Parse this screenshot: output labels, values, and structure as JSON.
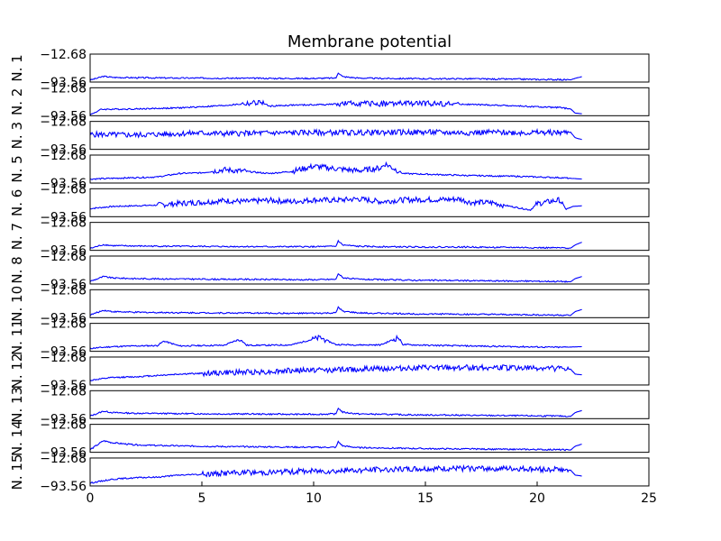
{
  "chart_data": {
    "type": "line",
    "title": "Membrane potential",
    "xlabel": "",
    "ylabel": "",
    "xlim": [
      0,
      25
    ],
    "ylim": [
      -93.56,
      -12.68
    ],
    "x_ticks": [
      0,
      5,
      10,
      15,
      20,
      25
    ],
    "y_tick_labels": [
      "−12.68",
      "−93.56"
    ],
    "line_color": "#0000ff",
    "grid": false,
    "legend": "none",
    "series": [
      {
        "name": "N. 1",
        "x": [
          0,
          0.6,
          1,
          2,
          3,
          4,
          5,
          6,
          7,
          8,
          9,
          10,
          11,
          11.1,
          11.3,
          12,
          13,
          14,
          15,
          16,
          17,
          18,
          19,
          20,
          21,
          21.5,
          21.7,
          22
        ],
        "y": [
          -88,
          -77,
          -80,
          -81,
          -81.5,
          -82,
          -82,
          -82.5,
          -82.5,
          -83,
          -83,
          -83,
          -82,
          -66,
          -78,
          -82,
          -83,
          -83.5,
          -84,
          -84,
          -84,
          -85,
          -85,
          -86,
          -86.5,
          -87,
          -83,
          -78
        ]
      },
      {
        "name": "N. 2",
        "x": [
          0,
          0.5,
          2,
          4,
          6,
          7.7,
          8,
          9,
          10,
          11,
          12,
          13,
          14,
          15,
          16,
          17,
          18,
          19,
          20,
          21,
          21.5,
          21.7,
          22
        ],
        "y": [
          -91,
          -75,
          -74,
          -71,
          -64,
          -55,
          -66,
          -63,
          -62,
          -60,
          -58,
          -59,
          -58,
          -58,
          -59,
          -61,
          -63,
          -65,
          -68,
          -70,
          -74,
          -86,
          -88
        ]
      },
      {
        "name": "N. 3",
        "x": [
          0,
          1,
          2,
          3,
          4,
          5,
          6,
          8,
          10,
          12,
          14,
          15,
          16,
          17,
          18,
          19,
          20,
          21,
          21.5,
          21.7,
          22
        ],
        "y": [
          -50,
          -51,
          -52,
          -50,
          -48,
          -46,
          -48,
          -46,
          -45,
          -45,
          -44,
          -44,
          -45,
          -45,
          -44,
          -45,
          -45,
          -45,
          -44,
          -60,
          -65
        ]
      },
      {
        "name": "N. 5",
        "x": [
          0,
          1,
          2,
          3,
          4,
          5,
          6,
          7,
          8,
          9,
          10,
          11,
          12,
          13,
          13.2,
          14,
          15,
          16,
          17,
          18,
          19,
          20,
          21,
          21.5,
          22
        ],
        "y": [
          -82,
          -80,
          -78,
          -76,
          -66,
          -64,
          -55,
          -60,
          -66,
          -60,
          -45,
          -52,
          -58,
          -50,
          -38,
          -66,
          -68,
          -70,
          -72,
          -73,
          -74,
          -76,
          -78,
          -80,
          -82
        ]
      },
      {
        "name": "N. 6",
        "x": [
          0,
          1,
          2,
          3,
          4,
          5,
          6,
          7,
          8,
          9,
          10,
          11,
          12,
          13,
          14,
          15,
          16,
          16.5,
          17,
          18,
          18.5,
          19,
          19.7,
          20,
          21,
          21.3,
          21.6,
          22
        ],
        "y": [
          -70,
          -64,
          -62,
          -60,
          -55,
          -52,
          -47,
          -50,
          -46,
          -50,
          -45,
          -46,
          -42,
          -50,
          -45,
          -44,
          -44,
          -42,
          -52,
          -53,
          -60,
          -66,
          -74,
          -56,
          -45,
          -72,
          -64,
          -62
        ]
      },
      {
        "name": "N. 7",
        "x": [
          0,
          0.6,
          1,
          2,
          3,
          4,
          5,
          6,
          7,
          8,
          9,
          10,
          11,
          11.1,
          11.3,
          12,
          13,
          14,
          15,
          16,
          17,
          18,
          19,
          20,
          21,
          21.5,
          21.7,
          22
        ],
        "y": [
          -88,
          -77,
          -80,
          -81,
          -81.5,
          -82,
          -82,
          -82.5,
          -82.5,
          -83,
          -83,
          -83,
          -82,
          -66,
          -78,
          -82,
          -83,
          -83.5,
          -84,
          -84,
          -84,
          -85,
          -85,
          -86,
          -86.5,
          -87,
          -78,
          -70
        ]
      },
      {
        "name": "N. 8",
        "x": [
          0,
          0.6,
          1,
          2,
          3,
          4,
          5,
          6,
          7,
          8,
          9,
          10,
          11,
          11.1,
          11.3,
          12,
          13,
          14,
          15,
          16,
          17,
          18,
          19,
          20,
          21,
          21.5,
          21.7,
          22
        ],
        "y": [
          -86,
          -72,
          -76,
          -78,
          -78.5,
          -79,
          -79.5,
          -80,
          -80,
          -80.5,
          -81,
          -81,
          -80,
          -63,
          -75,
          -80,
          -81,
          -82,
          -83,
          -83,
          -84,
          -84.5,
          -85,
          -85.5,
          -86,
          -87,
          -78,
          -72
        ]
      },
      {
        "name": "N. 10",
        "x": [
          0,
          0.6,
          1,
          2,
          3,
          4,
          5,
          6,
          7,
          8,
          9,
          10,
          11,
          11.1,
          11.3,
          12,
          13,
          14,
          15,
          16,
          17,
          18,
          19,
          20,
          21,
          21.5,
          21.7,
          22
        ],
        "y": [
          -86,
          -72,
          -76,
          -78,
          -78.5,
          -79,
          -79.5,
          -80,
          -80,
          -80.5,
          -81,
          -81,
          -80,
          -63,
          -75,
          -80,
          -81,
          -82,
          -83,
          -83,
          -84,
          -84.5,
          -85,
          -85.5,
          -86,
          -87,
          -76,
          -70
        ]
      },
      {
        "name": "N. 11",
        "x": [
          0,
          1,
          2,
          3,
          3.3,
          4,
          5,
          6,
          6.7,
          7,
          8,
          9,
          10,
          10.3,
          11,
          12,
          13,
          13.8,
          14,
          15,
          16,
          17,
          18,
          19,
          20,
          21,
          21.5,
          22
        ],
        "y": [
          -85,
          -80,
          -78,
          -77,
          -64,
          -78,
          -77,
          -76,
          -58,
          -76,
          -76,
          -75,
          -58,
          -54,
          -74,
          -75,
          -75,
          -53,
          -74,
          -76,
          -77,
          -78,
          -79,
          -80,
          -81,
          -82,
          -81,
          -80
        ]
      },
      {
        "name": "N. 12",
        "x": [
          0,
          1,
          2,
          3,
          4,
          5,
          6,
          7,
          8,
          9,
          10,
          11,
          12,
          13,
          14,
          15,
          16,
          17,
          18,
          19,
          20,
          21,
          21.5,
          21.7,
          22
        ],
        "y": [
          -80,
          -72,
          -70,
          -66,
          -62,
          -60,
          -58,
          -56,
          -55,
          -52,
          -50,
          -50,
          -48,
          -46,
          -45,
          -44,
          -44,
          -43,
          -43,
          -44,
          -45,
          -46,
          -48,
          -62,
          -64
        ]
      },
      {
        "name": "N. 13",
        "x": [
          0,
          0.6,
          1,
          2,
          3,
          4,
          5,
          6,
          7,
          8,
          9,
          10,
          11,
          11.1,
          11.3,
          12,
          13,
          14,
          15,
          16,
          17,
          18,
          19,
          20,
          21,
          21.5,
          21.7,
          22
        ],
        "y": [
          -86,
          -72,
          -76,
          -78,
          -78.5,
          -79,
          -79.5,
          -80,
          -80,
          -80.5,
          -81,
          -81,
          -80,
          -63,
          -75,
          -80,
          -81,
          -82,
          -83,
          -83,
          -84,
          -84.5,
          -85,
          -85.5,
          -86,
          -87,
          -76,
          -70
        ]
      },
      {
        "name": "N. 14",
        "x": [
          0,
          0.6,
          1,
          2,
          3,
          4,
          5,
          6,
          7,
          8,
          9,
          10,
          11,
          11.1,
          11.3,
          12,
          13,
          14,
          15,
          16,
          17,
          18,
          19,
          20,
          21,
          21.5,
          21.7,
          22
        ],
        "y": [
          -86,
          -60,
          -66,
          -72,
          -74,
          -75,
          -76,
          -77,
          -77.5,
          -78,
          -78.5,
          -79,
          -79,
          -63,
          -75,
          -80,
          -81,
          -82,
          -83,
          -83.5,
          -84,
          -84.5,
          -85,
          -85.5,
          -86,
          -87,
          -76,
          -70
        ]
      },
      {
        "name": "N. 15",
        "x": [
          0,
          1,
          2,
          3,
          4,
          5,
          6,
          7,
          8,
          9,
          10,
          11,
          12,
          13,
          14,
          15,
          16,
          17,
          18,
          19,
          20,
          21,
          21.5,
          21.7,
          22
        ],
        "y": [
          -85,
          -74,
          -70,
          -68,
          -62,
          -60,
          -56,
          -55,
          -54,
          -52,
          -50,
          -50,
          -48,
          -46,
          -45,
          -44,
          -44,
          -43,
          -43,
          -44,
          -45,
          -46,
          -48,
          -62,
          -65
        ]
      }
    ]
  }
}
